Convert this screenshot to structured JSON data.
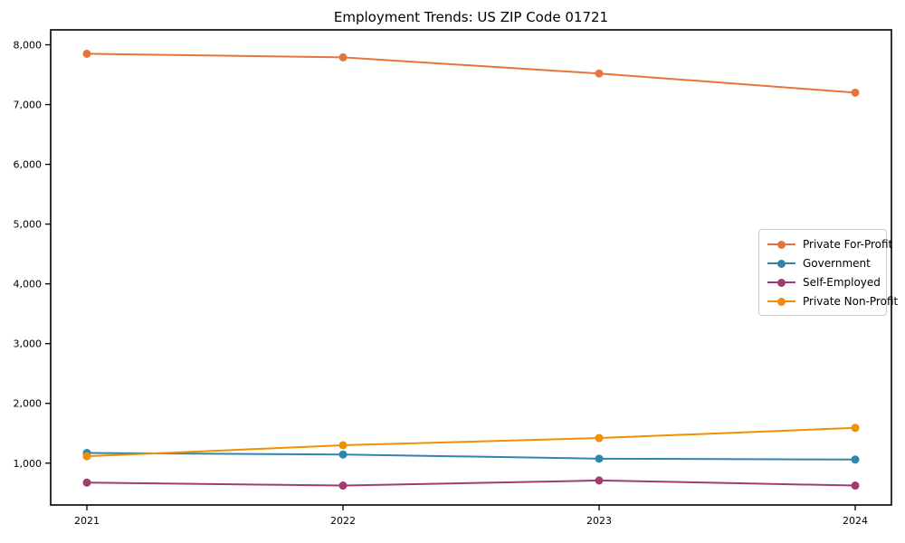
{
  "chart_data": {
    "type": "line",
    "title": "Employment Trends: US ZIP Code 01721",
    "categories": [
      "2021",
      "2022",
      "2023",
      "2024"
    ],
    "series": [
      {
        "name": "Private For-Profit",
        "color": "#E8743B",
        "values": [
          7850,
          7790,
          7520,
          7200
        ]
      },
      {
        "name": "Government",
        "color": "#2E86AB",
        "values": [
          1170,
          1145,
          1075,
          1060
        ]
      },
      {
        "name": "Self-Employed",
        "color": "#A23B72",
        "values": [
          675,
          625,
          710,
          625
        ]
      },
      {
        "name": "Private Non-Profit",
        "color": "#F18F01",
        "values": [
          1115,
          1300,
          1420,
          1590
        ]
      }
    ],
    "xlabel": "",
    "ylabel": "",
    "ylim": [
      300,
      8250
    ],
    "yticks": [
      {
        "value": 1000,
        "label": "1,000"
      },
      {
        "value": 2000,
        "label": "2,000"
      },
      {
        "value": 3000,
        "label": "3,000"
      },
      {
        "value": 4000,
        "label": "4,000"
      },
      {
        "value": 5000,
        "label": "5,000"
      },
      {
        "value": 6000,
        "label": "6,000"
      },
      {
        "value": 7000,
        "label": "7,000"
      },
      {
        "value": 8000,
        "label": "8,000"
      }
    ],
    "grid": false,
    "legend_position": "center right",
    "marker": "circle",
    "line_width": 2,
    "marker_radius": 4.5,
    "axis_color": "#000000",
    "tick_label_color": "#000000",
    "background_color": "#ffffff"
  }
}
